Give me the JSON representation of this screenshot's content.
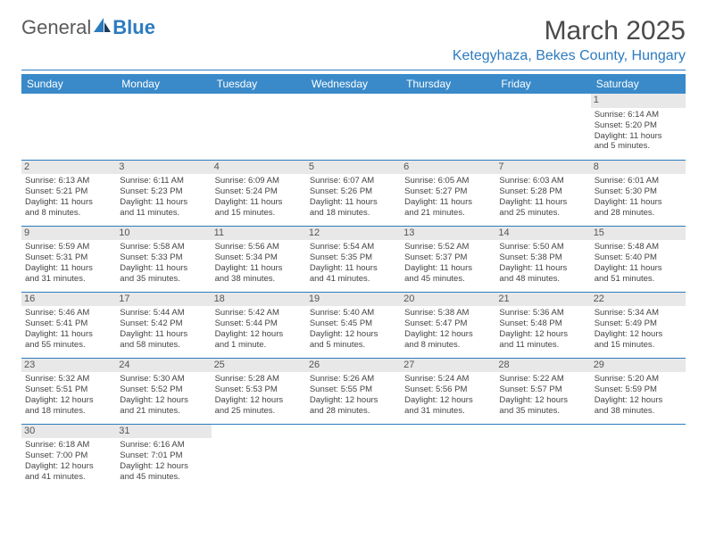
{
  "logo": {
    "text1": "General",
    "text2": "Blue"
  },
  "title": "March 2025",
  "location": "Ketegyhaza, Bekes County, Hungary",
  "colors": {
    "accent": "#2c7bbf",
    "header_bg": "#3a8ac9",
    "daynum_bg": "#e8e8e8",
    "empty_bg": "#f1f1f1"
  },
  "day_headers": [
    "Sunday",
    "Monday",
    "Tuesday",
    "Wednesday",
    "Thursday",
    "Friday",
    "Saturday"
  ],
  "weeks": [
    [
      null,
      null,
      null,
      null,
      null,
      null,
      {
        "n": "1",
        "sr": "Sunrise: 6:14 AM",
        "ss": "Sunset: 5:20 PM",
        "d1": "Daylight: 11 hours",
        "d2": "and 5 minutes."
      }
    ],
    [
      {
        "n": "2",
        "sr": "Sunrise: 6:13 AM",
        "ss": "Sunset: 5:21 PM",
        "d1": "Daylight: 11 hours",
        "d2": "and 8 minutes."
      },
      {
        "n": "3",
        "sr": "Sunrise: 6:11 AM",
        "ss": "Sunset: 5:23 PM",
        "d1": "Daylight: 11 hours",
        "d2": "and 11 minutes."
      },
      {
        "n": "4",
        "sr": "Sunrise: 6:09 AM",
        "ss": "Sunset: 5:24 PM",
        "d1": "Daylight: 11 hours",
        "d2": "and 15 minutes."
      },
      {
        "n": "5",
        "sr": "Sunrise: 6:07 AM",
        "ss": "Sunset: 5:26 PM",
        "d1": "Daylight: 11 hours",
        "d2": "and 18 minutes."
      },
      {
        "n": "6",
        "sr": "Sunrise: 6:05 AM",
        "ss": "Sunset: 5:27 PM",
        "d1": "Daylight: 11 hours",
        "d2": "and 21 minutes."
      },
      {
        "n": "7",
        "sr": "Sunrise: 6:03 AM",
        "ss": "Sunset: 5:28 PM",
        "d1": "Daylight: 11 hours",
        "d2": "and 25 minutes."
      },
      {
        "n": "8",
        "sr": "Sunrise: 6:01 AM",
        "ss": "Sunset: 5:30 PM",
        "d1": "Daylight: 11 hours",
        "d2": "and 28 minutes."
      }
    ],
    [
      {
        "n": "9",
        "sr": "Sunrise: 5:59 AM",
        "ss": "Sunset: 5:31 PM",
        "d1": "Daylight: 11 hours",
        "d2": "and 31 minutes."
      },
      {
        "n": "10",
        "sr": "Sunrise: 5:58 AM",
        "ss": "Sunset: 5:33 PM",
        "d1": "Daylight: 11 hours",
        "d2": "and 35 minutes."
      },
      {
        "n": "11",
        "sr": "Sunrise: 5:56 AM",
        "ss": "Sunset: 5:34 PM",
        "d1": "Daylight: 11 hours",
        "d2": "and 38 minutes."
      },
      {
        "n": "12",
        "sr": "Sunrise: 5:54 AM",
        "ss": "Sunset: 5:35 PM",
        "d1": "Daylight: 11 hours",
        "d2": "and 41 minutes."
      },
      {
        "n": "13",
        "sr": "Sunrise: 5:52 AM",
        "ss": "Sunset: 5:37 PM",
        "d1": "Daylight: 11 hours",
        "d2": "and 45 minutes."
      },
      {
        "n": "14",
        "sr": "Sunrise: 5:50 AM",
        "ss": "Sunset: 5:38 PM",
        "d1": "Daylight: 11 hours",
        "d2": "and 48 minutes."
      },
      {
        "n": "15",
        "sr": "Sunrise: 5:48 AM",
        "ss": "Sunset: 5:40 PM",
        "d1": "Daylight: 11 hours",
        "d2": "and 51 minutes."
      }
    ],
    [
      {
        "n": "16",
        "sr": "Sunrise: 5:46 AM",
        "ss": "Sunset: 5:41 PM",
        "d1": "Daylight: 11 hours",
        "d2": "and 55 minutes."
      },
      {
        "n": "17",
        "sr": "Sunrise: 5:44 AM",
        "ss": "Sunset: 5:42 PM",
        "d1": "Daylight: 11 hours",
        "d2": "and 58 minutes."
      },
      {
        "n": "18",
        "sr": "Sunrise: 5:42 AM",
        "ss": "Sunset: 5:44 PM",
        "d1": "Daylight: 12 hours",
        "d2": "and 1 minute."
      },
      {
        "n": "19",
        "sr": "Sunrise: 5:40 AM",
        "ss": "Sunset: 5:45 PM",
        "d1": "Daylight: 12 hours",
        "d2": "and 5 minutes."
      },
      {
        "n": "20",
        "sr": "Sunrise: 5:38 AM",
        "ss": "Sunset: 5:47 PM",
        "d1": "Daylight: 12 hours",
        "d2": "and 8 minutes."
      },
      {
        "n": "21",
        "sr": "Sunrise: 5:36 AM",
        "ss": "Sunset: 5:48 PM",
        "d1": "Daylight: 12 hours",
        "d2": "and 11 minutes."
      },
      {
        "n": "22",
        "sr": "Sunrise: 5:34 AM",
        "ss": "Sunset: 5:49 PM",
        "d1": "Daylight: 12 hours",
        "d2": "and 15 minutes."
      }
    ],
    [
      {
        "n": "23",
        "sr": "Sunrise: 5:32 AM",
        "ss": "Sunset: 5:51 PM",
        "d1": "Daylight: 12 hours",
        "d2": "and 18 minutes."
      },
      {
        "n": "24",
        "sr": "Sunrise: 5:30 AM",
        "ss": "Sunset: 5:52 PM",
        "d1": "Daylight: 12 hours",
        "d2": "and 21 minutes."
      },
      {
        "n": "25",
        "sr": "Sunrise: 5:28 AM",
        "ss": "Sunset: 5:53 PM",
        "d1": "Daylight: 12 hours",
        "d2": "and 25 minutes."
      },
      {
        "n": "26",
        "sr": "Sunrise: 5:26 AM",
        "ss": "Sunset: 5:55 PM",
        "d1": "Daylight: 12 hours",
        "d2": "and 28 minutes."
      },
      {
        "n": "27",
        "sr": "Sunrise: 5:24 AM",
        "ss": "Sunset: 5:56 PM",
        "d1": "Daylight: 12 hours",
        "d2": "and 31 minutes."
      },
      {
        "n": "28",
        "sr": "Sunrise: 5:22 AM",
        "ss": "Sunset: 5:57 PM",
        "d1": "Daylight: 12 hours",
        "d2": "and 35 minutes."
      },
      {
        "n": "29",
        "sr": "Sunrise: 5:20 AM",
        "ss": "Sunset: 5:59 PM",
        "d1": "Daylight: 12 hours",
        "d2": "and 38 minutes."
      }
    ],
    [
      {
        "n": "30",
        "sr": "Sunrise: 6:18 AM",
        "ss": "Sunset: 7:00 PM",
        "d1": "Daylight: 12 hours",
        "d2": "and 41 minutes."
      },
      {
        "n": "31",
        "sr": "Sunrise: 6:16 AM",
        "ss": "Sunset: 7:01 PM",
        "d1": "Daylight: 12 hours",
        "d2": "and 45 minutes."
      },
      null,
      null,
      null,
      null,
      null
    ]
  ]
}
